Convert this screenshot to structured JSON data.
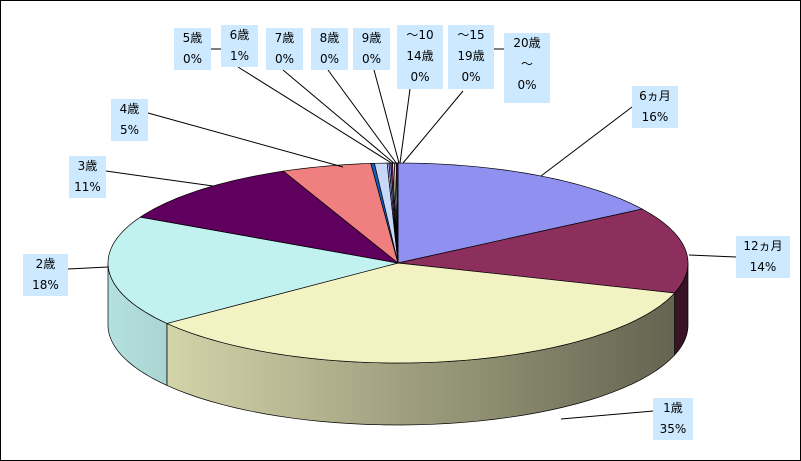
{
  "chart_data": {
    "type": "pie",
    "style": "3d",
    "start": "12 o'clock, clockwise",
    "legend": "none",
    "data_labels": "category and percent",
    "slices": [
      {
        "label": "6ヵ月",
        "percent_label": "16%",
        "value": 16,
        "color": "#9090f0"
      },
      {
        "label": "12ヵ月",
        "percent_label": "14%",
        "value": 14,
        "color": "#8c2f5c"
      },
      {
        "label": "1歳",
        "percent_label": "35%",
        "value": 35,
        "color": "#f2f2c2"
      },
      {
        "label": "2歳",
        "percent_label": "18%",
        "value": 18,
        "color": "#c2f2f0"
      },
      {
        "label": "3歳",
        "percent_label": "11%",
        "value": 11,
        "color": "#60005e"
      },
      {
        "label": "4歳",
        "percent_label": "5%",
        "value": 5,
        "color": "#f08080"
      },
      {
        "label": "5歳",
        "percent_label": "0%",
        "value": 0.2,
        "color": "#1060c0"
      },
      {
        "label": "6歳",
        "percent_label": "1%",
        "value": 0.7,
        "color": "#c8d8f8"
      },
      {
        "label": "7歳",
        "percent_label": "0%",
        "value": 0.1,
        "color": "#c0c0ff"
      },
      {
        "label": "8歳",
        "percent_label": "0%",
        "value": 0.1,
        "color": "#9090f0"
      },
      {
        "label": "9歳",
        "percent_label": "0%",
        "value": 0.1,
        "color": "#8c2f5c"
      },
      {
        "label": "～10\n14歳",
        "percent_label": "0%",
        "value": 0.1,
        "color": "#f2f2c2"
      },
      {
        "label": "～15\n19歳",
        "percent_label": "0%",
        "value": 0.1,
        "color": "#c2f2f0"
      },
      {
        "label": "20歳\n～",
        "percent_label": "0%",
        "value": 0.1,
        "color": "#60005e"
      }
    ]
  }
}
